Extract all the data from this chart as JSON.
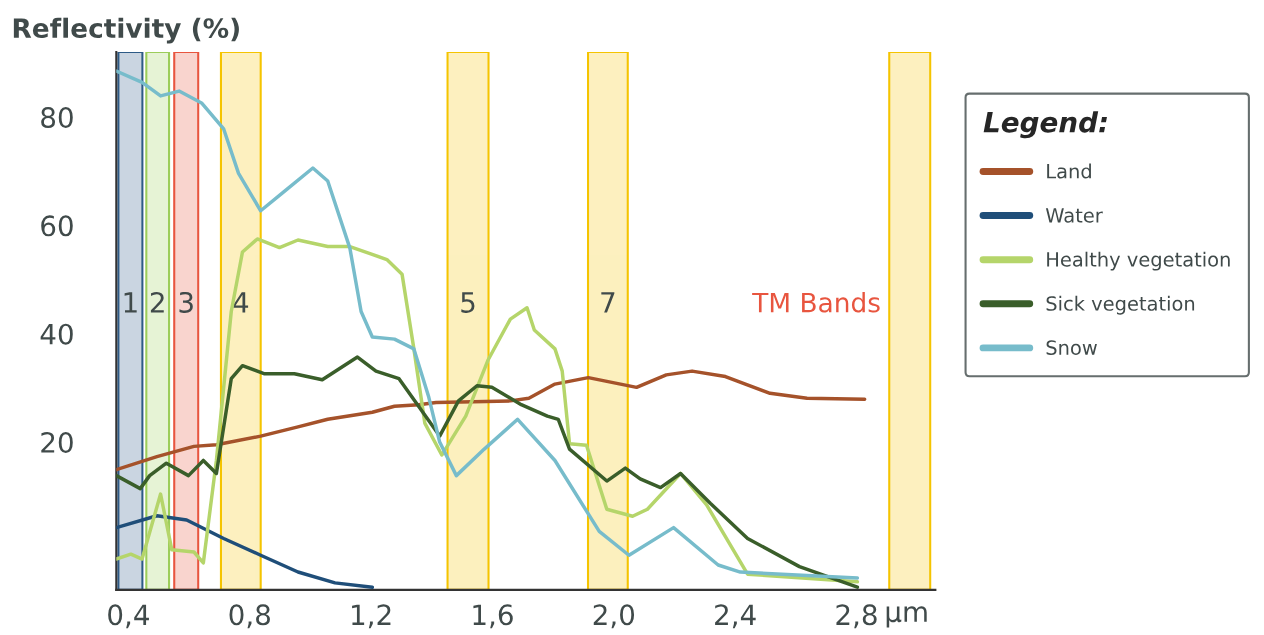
{
  "chart_data": {
    "type": "line",
    "ylabel": "Reflectivity (%)",
    "xlabel": "µm",
    "legend_title": "Legend:",
    "legend": "right",
    "grid": false,
    "marker": "none",
    "line_style": "solid",
    "xlim": [
      0.36,
      3.06
    ],
    "ylim": [
      -7.3,
      92
    ],
    "xticks": [
      {
        "value": 0.4,
        "label": "0,4"
      },
      {
        "value": 0.8,
        "label": "0,8"
      },
      {
        "value": 1.2,
        "label": "1,2"
      },
      {
        "value": 1.6,
        "label": "1,6"
      },
      {
        "value": 2.0,
        "label": "2,0"
      },
      {
        "value": 2.4,
        "label": "2,4"
      },
      {
        "value": 2.8,
        "label": "2,8"
      }
    ],
    "yticks": [
      20,
      40,
      60,
      80
    ],
    "annotations": [
      "TM Bands"
    ],
    "bands": [
      {
        "axis": "x",
        "from": 0.367,
        "to": 0.446,
        "label": "1",
        "color": "#2d5a86"
      },
      {
        "axis": "x",
        "from": 0.459,
        "to": 0.534,
        "label": "2",
        "color": "#9ccd5a"
      },
      {
        "axis": "x",
        "from": 0.551,
        "to": 0.63,
        "label": "3",
        "color": "#e8553f"
      },
      {
        "axis": "x",
        "from": 0.705,
        "to": 0.836,
        "label": "4",
        "color": "#f5c400"
      },
      {
        "axis": "x",
        "from": 1.452,
        "to": 1.587,
        "label": "5",
        "color": "#f5c400"
      },
      {
        "axis": "x",
        "from": 1.915,
        "to": 2.046,
        "label": "7",
        "color": "#f5c400"
      },
      {
        "axis": "x",
        "from": 2.908,
        "to": 3.043,
        "label": null,
        "color": "#f5c400"
      }
    ],
    "series": [
      {
        "name": "Land",
        "color": "#a5522a",
        "x": [
          0.36,
          0.494,
          0.616,
          0.69,
          0.836,
          0.959,
          1.057,
          1.204,
          1.277,
          1.357,
          1.414,
          1.659,
          1.72,
          1.806,
          1.916,
          2.075,
          2.173,
          2.258,
          2.368,
          2.515,
          2.637,
          2.827
        ],
        "values": [
          14.9,
          17.3,
          19.2,
          19.5,
          21.1,
          22.8,
          24.2,
          25.5,
          26.6,
          26.9,
          27.3,
          27.6,
          28.1,
          30.7,
          31.9,
          30.1,
          32.4,
          33.1,
          32.1,
          29.0,
          28.1,
          27.9
        ]
      },
      {
        "name": "Water",
        "color": "#1f4e79",
        "x": [
          0.36,
          0.494,
          0.592,
          0.714,
          0.836,
          0.959,
          1.081,
          1.204
        ],
        "values": [
          4.2,
          6.4,
          5.6,
          2.2,
          -0.9,
          -4.0,
          -6.0,
          -6.8
        ]
      },
      {
        "name": "Healthy vegetation",
        "color": "#b5d56a",
        "x": [
          0.36,
          0.408,
          0.445,
          0.506,
          0.543,
          0.616,
          0.647,
          0.69,
          0.739,
          0.776,
          0.825,
          0.898,
          0.959,
          1.057,
          1.13,
          1.252,
          1.302,
          1.341,
          1.377,
          1.433,
          1.512,
          1.586,
          1.659,
          1.714,
          1.738,
          1.806,
          1.83,
          1.854,
          1.91,
          1.977,
          2.062,
          2.111,
          2.22,
          2.306,
          2.441,
          2.803
        ],
        "values": [
          -1.6,
          -0.7,
          -1.6,
          10.4,
          0.1,
          -0.3,
          -2.3,
          16.6,
          44.1,
          55.1,
          57.5,
          55.9,
          57.3,
          56.1,
          56.1,
          53.7,
          51.0,
          37.2,
          23.5,
          17.6,
          24.8,
          35.2,
          42.7,
          44.8,
          40.7,
          37.2,
          33.1,
          19.7,
          19.4,
          7.6,
          6.3,
          7.6,
          14.2,
          8.4,
          -4.4,
          -5.8
        ]
      },
      {
        "name": "Sick vegetation",
        "color": "#3a5e2a",
        "x": [
          0.36,
          0.439,
          0.47,
          0.525,
          0.598,
          0.647,
          0.69,
          0.739,
          0.776,
          0.849,
          0.947,
          1.039,
          1.155,
          1.216,
          1.292,
          1.353,
          1.426,
          1.488,
          1.549,
          1.598,
          1.695,
          1.781,
          1.817,
          1.854,
          1.977,
          2.038,
          2.087,
          2.154,
          2.22,
          2.318,
          2.441,
          2.612,
          2.803
        ],
        "values": [
          13.8,
          11.4,
          13.8,
          16.1,
          13.8,
          16.6,
          14.2,
          31.7,
          34.1,
          32.6,
          32.6,
          31.5,
          35.7,
          33.1,
          31.7,
          26.9,
          21.1,
          27.6,
          30.4,
          30.1,
          26.9,
          24.8,
          24.2,
          18.7,
          12.8,
          15.2,
          13.2,
          11.6,
          14.2,
          8.7,
          2.2,
          -3.0,
          -6.8
        ]
      },
      {
        "name": "Snow",
        "color": "#77bccb",
        "x": [
          0.36,
          0.445,
          0.506,
          0.567,
          0.641,
          0.714,
          0.763,
          0.836,
          0.91,
          1.008,
          1.057,
          1.13,
          1.167,
          1.204,
          1.277,
          1.341,
          1.39,
          1.426,
          1.481,
          1.573,
          1.683,
          1.806,
          1.952,
          2.05,
          2.197,
          2.344,
          2.417,
          2.803
        ],
        "values": [
          88.5,
          86.4,
          83.9,
          84.8,
          82.6,
          77.8,
          69.6,
          62.7,
          66.1,
          70.6,
          68.2,
          55.8,
          44.1,
          39.4,
          39.0,
          37.2,
          28.3,
          20.0,
          13.8,
          18.7,
          24.2,
          16.6,
          3.5,
          -0.9,
          4.2,
          -2.7,
          -4.0,
          -5.1
        ]
      }
    ]
  }
}
